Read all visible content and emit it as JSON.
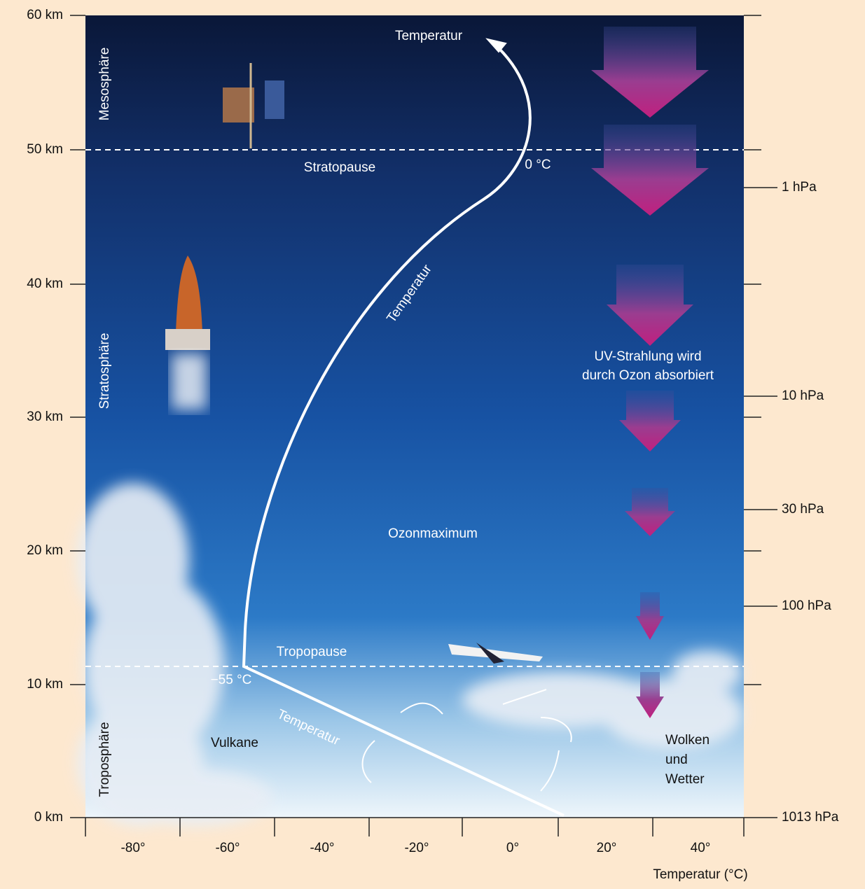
{
  "axes": {
    "left_ticks": [
      "60 km",
      "50 km",
      "40 km",
      "30 km",
      "20 km",
      "10 km",
      "0 km"
    ],
    "right_ticks": [
      "1 hPa",
      "10 hPa",
      "30 hPa",
      "100 hPa",
      "1013 hPa"
    ],
    "x_ticks": [
      "-80°",
      "-60°",
      "-40°",
      "-20°",
      "0°",
      "20°",
      "40°"
    ],
    "x_title": "Temperatur (°C)"
  },
  "layers": [
    "Mesosphäre",
    "Stratosphäre",
    "Troposphäre"
  ],
  "labels": {
    "temp_top": "Temperatur",
    "temp_mid": "Temperatur",
    "temp_low": "Temperatur",
    "stratopause": "Stratopause",
    "zero": "0 °C",
    "tropopause": "Tropopause",
    "minus55": "−55 °C",
    "uv": [
      "UV-Strahlung wird",
      "durch Ozon absorbiert"
    ],
    "ozone": "Ozonmaximum",
    "volcano": "Vulkane",
    "weather": [
      "Wolken",
      "und",
      "Wetter"
    ]
  }
}
